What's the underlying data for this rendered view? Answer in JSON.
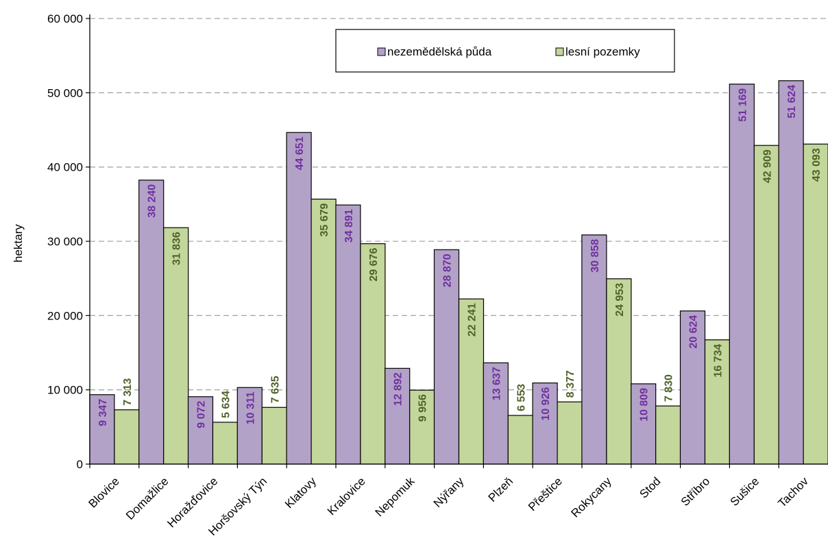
{
  "chart_data": {
    "type": "bar",
    "categories": [
      "Blovice",
      "Domažlice",
      "Horažďovice",
      "Horšovský Týn",
      "Klatovy",
      "Kralovice",
      "Nepomuk",
      "Nýřany",
      "Plzeň",
      "Přeštice",
      "Rokycany",
      "Stod",
      "Stříbro",
      "Sušice",
      "Tachov"
    ],
    "series": [
      {
        "name": "nezemědělská půda",
        "color": "#b3a2c7",
        "label_color": "#7030a0",
        "values": [
          9347,
          38240,
          9072,
          10311,
          44651,
          34891,
          12892,
          28870,
          13637,
          10926,
          30858,
          10809,
          20624,
          51169,
          51624
        ],
        "labels": [
          "9 347",
          "38 240",
          "9 072",
          "10 311",
          "44 651",
          "34 891",
          "12 892",
          "28 870",
          "13 637",
          "10 926",
          "30 858",
          "10 809",
          "20 624",
          "51 169",
          "51 624"
        ]
      },
      {
        "name": "lesní pozemky",
        "color": "#c3d69b",
        "label_color": "#4f6228",
        "values": [
          7313,
          31836,
          5634,
          7635,
          35679,
          29676,
          9956,
          22241,
          6553,
          8377,
          24953,
          7830,
          16734,
          42909,
          43093
        ],
        "labels": [
          "7 313",
          "31 836",
          "5 634",
          "7 635",
          "35 679",
          "29 676",
          "9 956",
          "22 241",
          "6 553",
          "8 377",
          "24 953",
          "7 830",
          "16 734",
          "42 909",
          "43 093"
        ]
      }
    ],
    "ylabel": "hektary",
    "ylim": [
      0,
      60000
    ],
    "yticks": [
      0,
      10000,
      20000,
      30000,
      40000,
      50000,
      60000
    ],
    "ytick_labels": [
      "0",
      "10 000",
      "20 000",
      "30 000",
      "40 000",
      "50 000",
      "60 000"
    ],
    "grid": true,
    "legend_position": "top-center"
  }
}
